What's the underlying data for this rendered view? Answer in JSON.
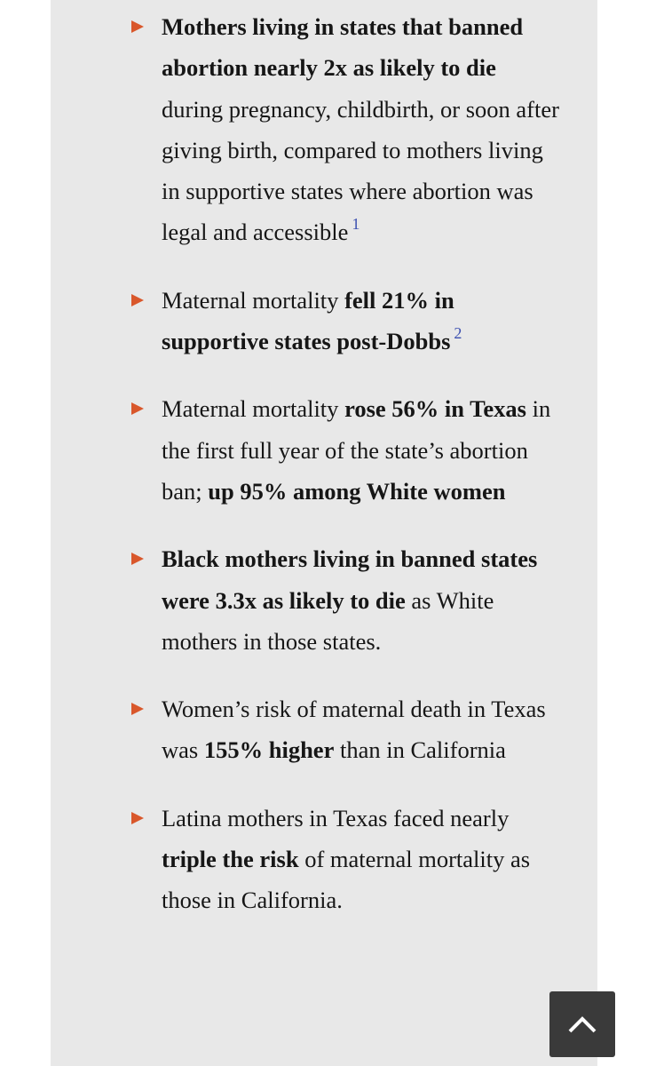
{
  "items": [
    {
      "segments": [
        {
          "text": "Mothers living in states that banned abortion nearly 2x as likely to die",
          "bold": true
        },
        {
          "text": " during pregnancy, childbirth, or soon after giving birth, compared to mothers living in supportive states where abortion was legal and accessible",
          "bold": false
        }
      ],
      "footnote": "1"
    },
    {
      "segments": [
        {
          "text": "Maternal mortality ",
          "bold": false
        },
        {
          "text": "fell 21% in supportive states post-Dobbs",
          "bold": true
        }
      ],
      "footnote": "2"
    },
    {
      "segments": [
        {
          "text": "Maternal mortality ",
          "bold": false
        },
        {
          "text": "rose 56% in Texas",
          "bold": true
        },
        {
          "text": " in the first full year of the state’s abortion ban; ",
          "bold": false
        },
        {
          "text": "up 95% among White women",
          "bold": true
        }
      ]
    },
    {
      "segments": [
        {
          "text": "Black mothers living in banned states were 3.3x as likely to die",
          "bold": true
        },
        {
          "text": " as White mothers in those states.",
          "bold": false
        }
      ]
    },
    {
      "segments": [
        {
          "text": "Women’s risk of maternal death in Texas was ",
          "bold": false
        },
        {
          "text": "155% higher",
          "bold": true
        },
        {
          "text": " than in California",
          "bold": false
        }
      ]
    },
    {
      "segments": [
        {
          "text": "Latina mothers in Texas faced nearly ",
          "bold": false
        },
        {
          "text": "triple the risk",
          "bold": true
        },
        {
          "text": " of maternal mortality as those in California.",
          "bold": false
        }
      ]
    }
  ]
}
